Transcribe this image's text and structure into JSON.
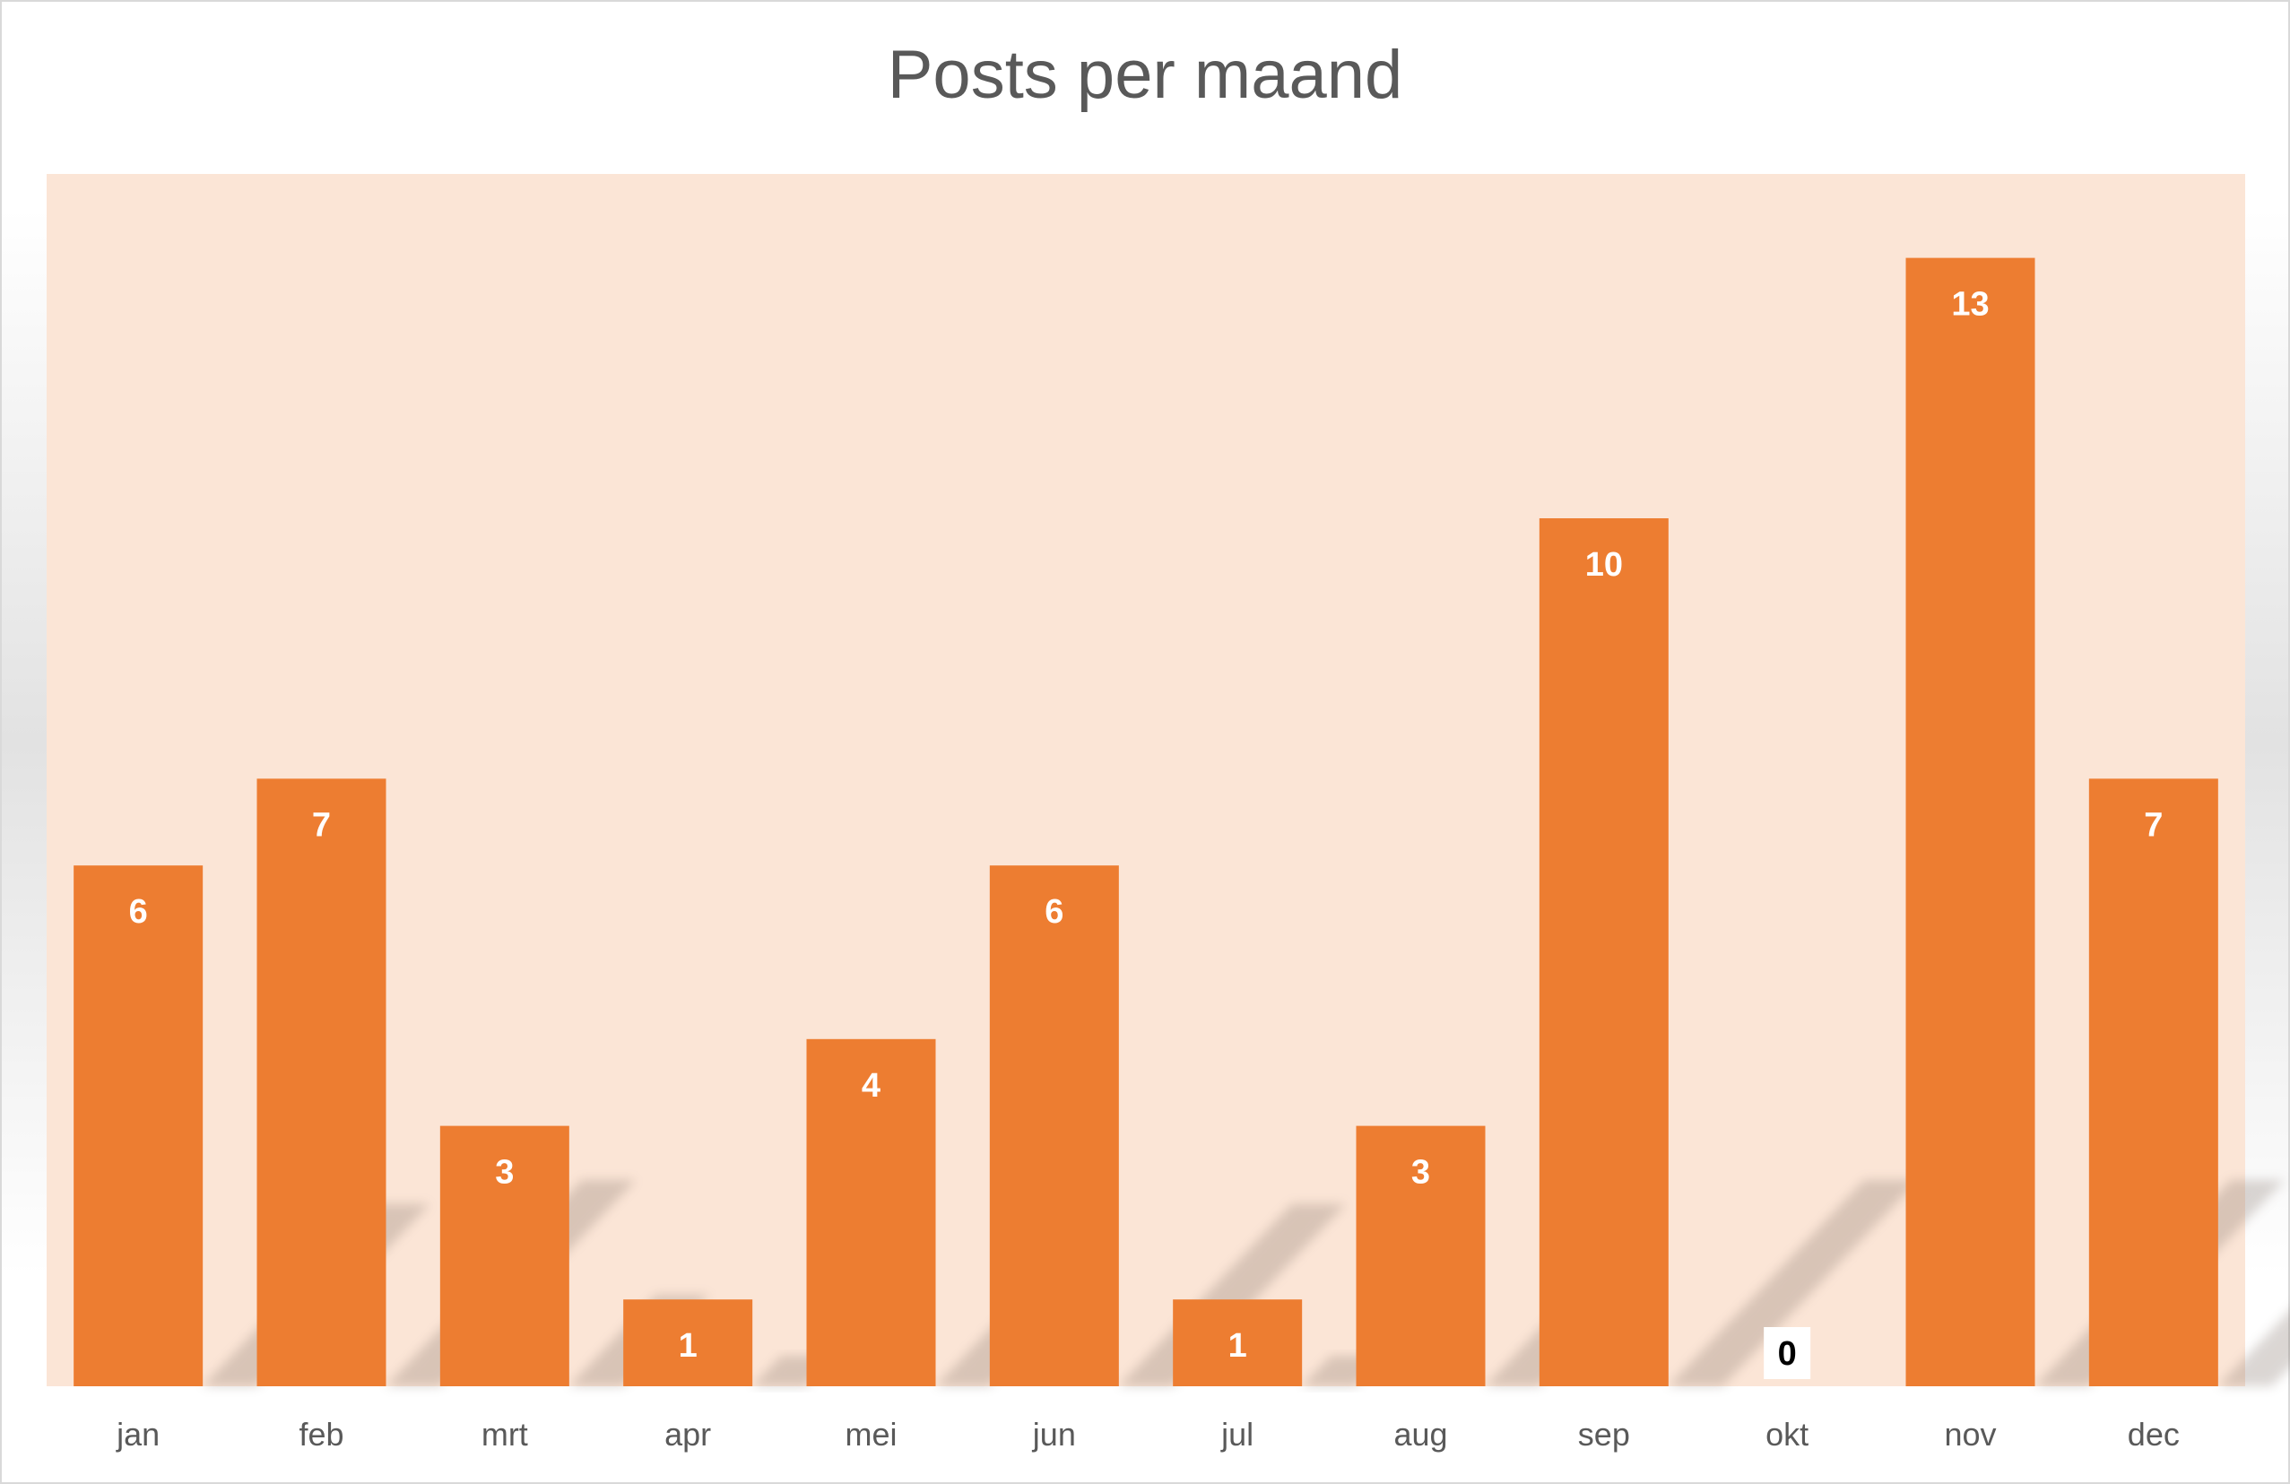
{
  "chart_data": {
    "type": "bar",
    "title": "Posts per maand",
    "xlabel": "",
    "ylabel": "",
    "categories": [
      "jan",
      "feb",
      "mrt",
      "apr",
      "mei",
      "jun",
      "jul",
      "aug",
      "sep",
      "okt",
      "nov",
      "dec"
    ],
    "values": [
      6,
      7,
      3,
      1,
      4,
      6,
      1,
      3,
      10,
      0,
      13,
      7
    ],
    "ylim": [
      0,
      14
    ],
    "grid": false,
    "legend": "none",
    "data_labels": true,
    "colors": {
      "bar": "#ED7D31",
      "plot_background": "#FBE5D6",
      "label_inside": "#FFFFFF",
      "label_zero": "#000000",
      "title": "#595959",
      "axis_text": "#595959"
    }
  }
}
